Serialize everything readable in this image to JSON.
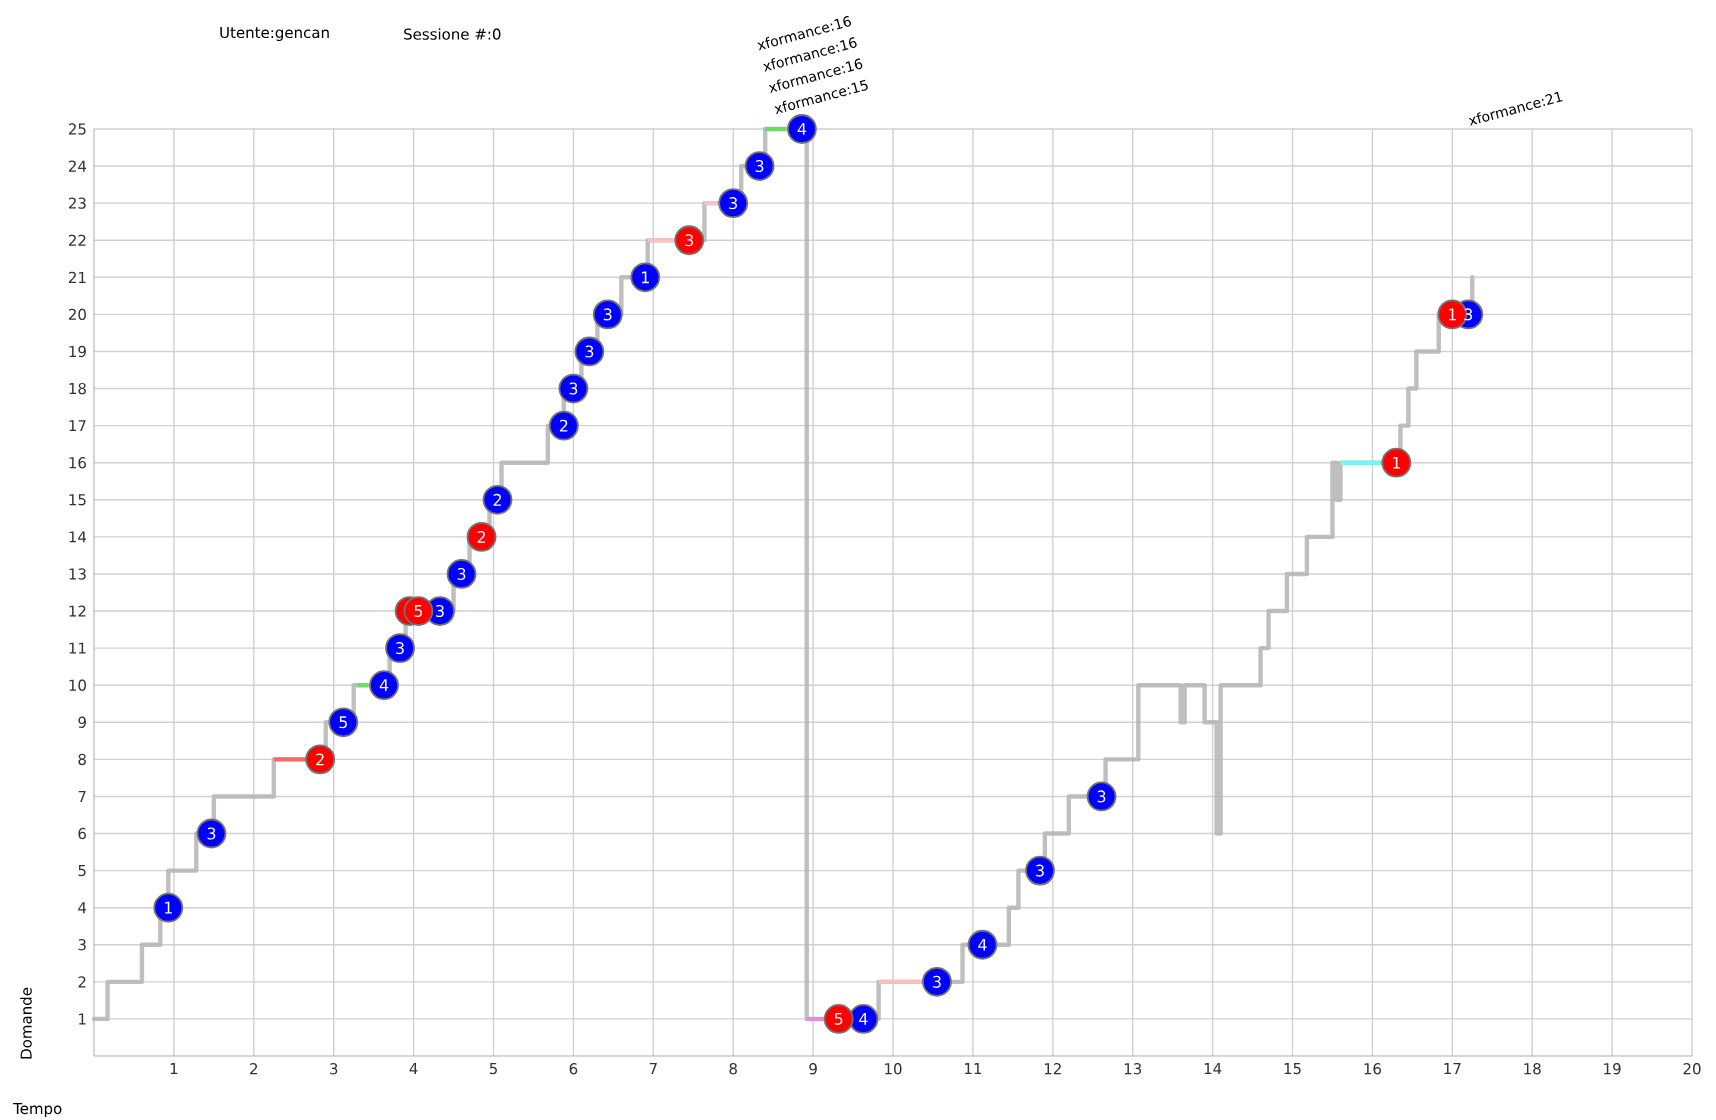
{
  "chart_data": {
    "type": "step",
    "title": "Utente:gencan",
    "subtitle": "Sessione #:0",
    "xlabel": "Tempo",
    "ylabel": "Domande",
    "xlim": [
      0,
      20
    ],
    "ylim": [
      0,
      25
    ],
    "xticks": [
      1,
      2,
      3,
      4,
      5,
      6,
      7,
      8,
      9,
      10,
      11,
      12,
      13,
      14,
      15,
      16,
      17,
      18,
      19,
      20
    ],
    "yticks": [
      1,
      2,
      3,
      4,
      5,
      6,
      7,
      8,
      9,
      10,
      11,
      12,
      13,
      14,
      15,
      16,
      17,
      18,
      19,
      20,
      21,
      22,
      23,
      24,
      25
    ],
    "grid": true,
    "annotations": [
      "xformance:15",
      "xformance:16",
      "xformance:16",
      "xformance:16",
      "xformance:21",
      {
        "text": "1",
        "x": 0.93,
        "y": 4
      },
      {
        "text": "3",
        "x": 1.47,
        "y": 6
      },
      {
        "text": "5",
        "x": 3.12,
        "y": 9
      },
      {
        "text": "4",
        "x": 3.63,
        "y": 10
      },
      {
        "text": "3",
        "x": 3.83,
        "y": 11
      },
      {
        "text": "3",
        "x": 4.33,
        "y": 12
      },
      {
        "text": "3",
        "x": 4.6,
        "y": 13
      },
      {
        "text": "2",
        "x": 5.05,
        "y": 15
      },
      {
        "text": "2",
        "x": 5.88,
        "y": 17
      },
      {
        "text": "3",
        "x": 6.0,
        "y": 18
      },
      {
        "text": "3",
        "x": 6.2,
        "y": 19
      },
      {
        "text": "3",
        "x": 6.43,
        "y": 20
      },
      {
        "text": "1",
        "x": 6.9,
        "y": 21
      },
      {
        "text": "3",
        "x": 8.0,
        "y": 23
      },
      {
        "text": "3",
        "x": 8.33,
        "y": 24
      },
      {
        "text": "4",
        "x": 8.86,
        "y": 25
      },
      {
        "text": "4",
        "x": 9.63,
        "y": 1
      },
      {
        "text": "3",
        "x": 10.55,
        "y": 2
      },
      {
        "text": "4",
        "x": 11.12,
        "y": 3
      },
      {
        "text": "3",
        "x": 11.84,
        "y": 5
      },
      {
        "text": "3",
        "x": 12.61,
        "y": 7
      },
      {
        "text": "3",
        "x": 17.2,
        "y": 20
      },
      {
        "text": "2",
        "x": 2.83,
        "y": 8
      },
      {
        "text": "5",
        "x": 4.06,
        "y": 12
      },
      {
        "text": "2",
        "x": 4.85,
        "y": 14
      },
      {
        "text": "3",
        "x": 7.45,
        "y": 22
      },
      {
        "text": "5",
        "x": 9.32,
        "y": 1
      },
      {
        "text": "1",
        "x": 16.3,
        "y": 16
      },
      {
        "text": "1",
        "x": 17.0,
        "y": 20
      }
    ],
    "series": [
      {
        "type": "step",
        "color": "#b4b4b4",
        "x": [
          0,
          0.17,
          0.6,
          0.83,
          0.93,
          1.28,
          1.5,
          2.25,
          2.9,
          3.25,
          3.7,
          3.9,
          4.5,
          4.7,
          4.95,
          5.1,
          5.68,
          5.88,
          6.1,
          6.3,
          6.6,
          6.93,
          7.64,
          8.1,
          8.4,
          8.92,
          9.82,
          10.87,
          11.45,
          11.57,
          11.9,
          12.2,
          12.66,
          13.07,
          13.6,
          13.65,
          13.9,
          14.05,
          14.1,
          14.6,
          14.7,
          14.93,
          15.18,
          15.5,
          15.55,
          15.6,
          16.35,
          16.45,
          16.55,
          16.83,
          17.25
        ],
        "values": [
          1,
          2,
          3,
          4,
          5,
          6,
          7,
          8,
          9,
          10,
          11,
          12,
          13,
          14,
          15,
          16,
          17,
          18,
          19,
          20,
          21,
          22,
          23,
          24,
          25,
          1,
          2,
          3,
          4,
          5,
          6,
          7,
          8,
          10,
          9,
          10,
          9,
          6,
          10,
          11,
          12,
          13,
          14,
          16,
          15,
          16,
          17,
          18,
          19,
          20,
          21
        ]
      },
      {
        "type": "line",
        "color": "#ff6666",
        "x": [
          2.25,
          2.83
        ],
        "values": [
          8,
          8
        ]
      },
      {
        "type": "line",
        "color": "#66dd66",
        "x": [
          3.3,
          3.43
        ],
        "values": [
          10,
          10
        ]
      },
      {
        "type": "line",
        "color": "#ffc0c0",
        "x": [
          6.93,
          7.45
        ],
        "values": [
          22,
          22
        ]
      },
      {
        "type": "line",
        "color": "#ffc0c0",
        "x": [
          7.64,
          7.8
        ],
        "values": [
          23,
          23
        ]
      },
      {
        "type": "line",
        "color": "#66dd66",
        "x": [
          8.4,
          8.66
        ],
        "values": [
          25,
          25
        ]
      },
      {
        "type": "line",
        "color": "#ee82ee",
        "x": [
          8.92,
          9.32
        ],
        "values": [
          1,
          1
        ]
      },
      {
        "type": "line",
        "color": "#ffc0c0",
        "x": [
          9.82,
          10.35
        ],
        "values": [
          2,
          2
        ]
      },
      {
        "type": "line",
        "color": "#66ffff",
        "x": [
          15.6,
          16.1
        ],
        "values": [
          16,
          16
        ]
      },
      {
        "type": "scatter",
        "marker": "circle",
        "color": "#0000ff",
        "x": [
          0.93,
          1.47,
          3.12,
          3.63,
          3.83,
          4.33,
          4.6,
          5.05,
          5.88,
          6.0,
          6.2,
          6.43,
          6.9,
          8.0,
          8.33,
          8.86,
          9.63,
          10.55,
          11.12,
          11.84,
          12.61,
          17.2
        ],
        "values": [
          4,
          6,
          9,
          10,
          11,
          12,
          13,
          15,
          17,
          18,
          19,
          20,
          21,
          23,
          24,
          25,
          1,
          2,
          3,
          5,
          7,
          20
        ]
      },
      {
        "type": "scatter",
        "marker": "circle",
        "color": "#ff0000",
        "x": [
          2.83,
          3.95,
          4.06,
          4.85,
          7.45,
          9.32,
          16.3,
          17.0
        ],
        "values": [
          8,
          12,
          12,
          14,
          22,
          1,
          16,
          20
        ]
      }
    ]
  }
}
